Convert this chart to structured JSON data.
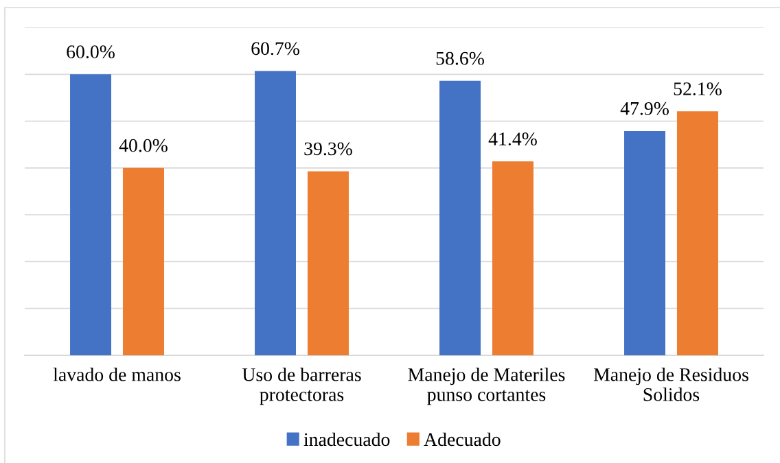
{
  "chart_data": {
    "type": "bar",
    "categories": [
      "lavado de manos",
      "Uso de barreras protectoras",
      "Manejo de Materiles punso cortantes",
      "Manejo de Residuos Solidos"
    ],
    "series": [
      {
        "name": "inadecuado",
        "color": "#4472c4",
        "values": [
          60.0,
          60.7,
          58.6,
          47.9
        ],
        "value_labels": [
          "60.0%",
          "60.7%",
          "58.6%",
          "47.9%"
        ]
      },
      {
        "name": "Adecuado",
        "color": "#ed7d31",
        "values": [
          40.0,
          39.3,
          41.4,
          52.1
        ],
        "value_labels": [
          "40.0%",
          "39.3%",
          "41.4%",
          "52.1%"
        ]
      }
    ],
    "ylim": [
      0,
      70
    ],
    "yticks": [
      {
        "value": 0,
        "label": null
      },
      {
        "value": 10,
        "label": null
      },
      {
        "value": 20,
        "label": null
      },
      {
        "value": 30,
        "label": null
      },
      {
        "value": 40,
        "label": null
      },
      {
        "value": 50,
        "label": null
      },
      {
        "value": 60,
        "label": null
      },
      {
        "value": 70,
        "label": null
      }
    ],
    "grid": "y",
    "legend": "bottom",
    "tick_labels": "x"
  }
}
